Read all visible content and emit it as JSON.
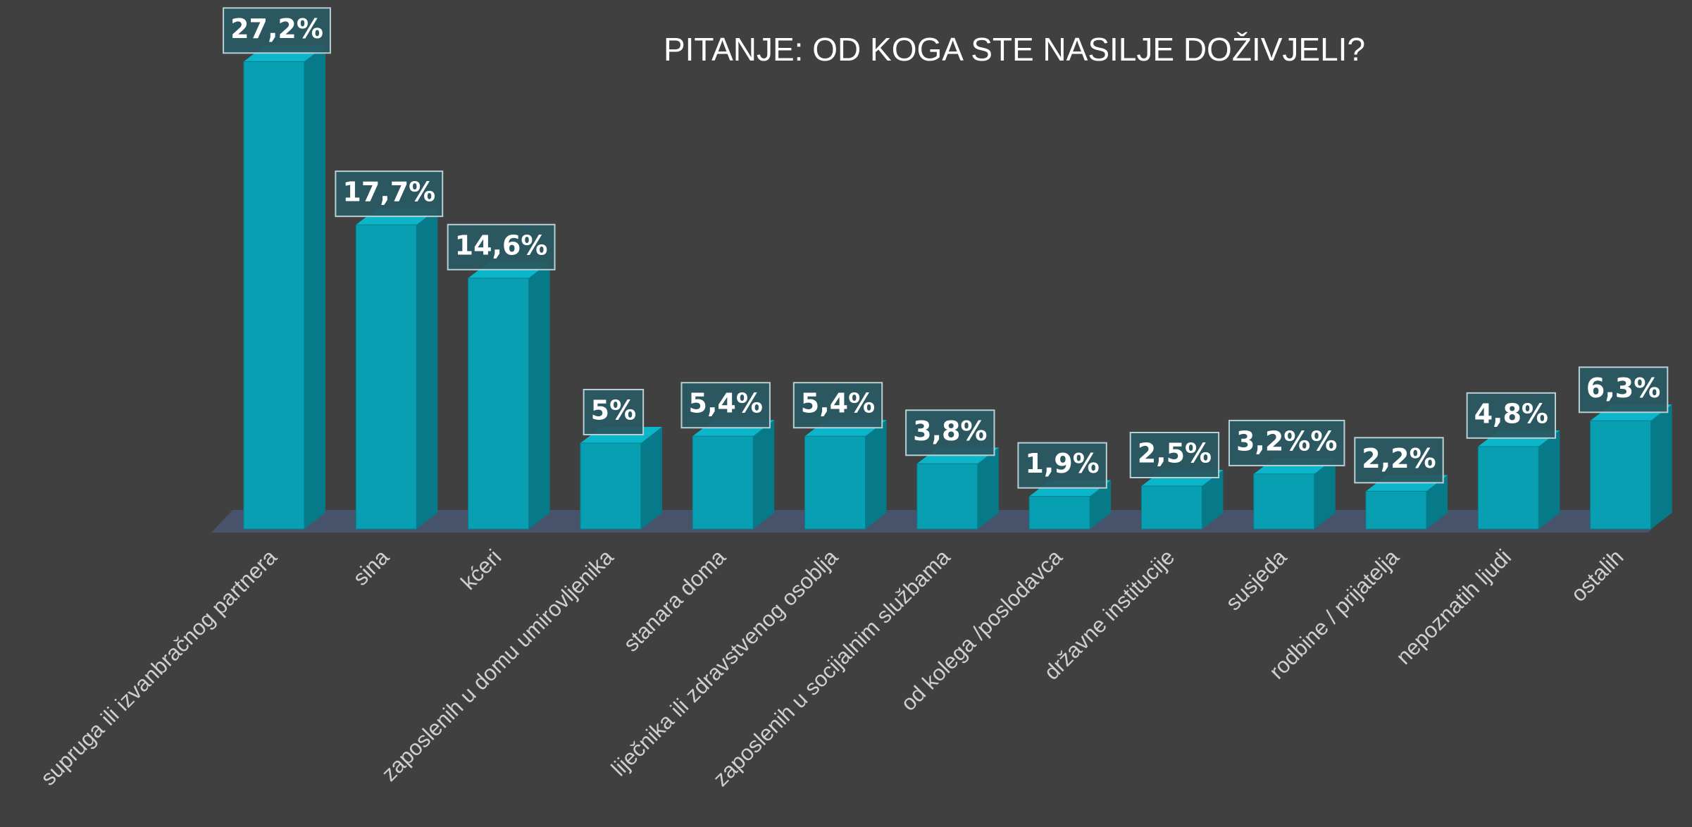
{
  "chart_data": {
    "type": "bar3d",
    "title": "PITANJE: OD KOGA STE NASILJE DOŽIVJELI?",
    "categories": [
      "supruga ili izvanbračnog partnera",
      "sina",
      "kćeri",
      "zaposlenih u domu umirovljenika",
      "stanara doma",
      "liječnika ili zdravstvenog osoblja",
      "zaposlenih u socijalnim službama",
      "od kolega /poslodavca",
      "državne institucije",
      "susjeda",
      "rodbine / prijatelja",
      "nepoznatih ljudi",
      "ostalih"
    ],
    "values": [
      27.2,
      17.7,
      14.6,
      5,
      5.4,
      5.4,
      3.8,
      1.9,
      2.5,
      3.2,
      2.2,
      4.8,
      6.3
    ],
    "value_labels": [
      "27,2%",
      "17,7%",
      "14,6%",
      "5%",
      "5,4%",
      "5,4%",
      "3,8%",
      "1,9%",
      "2,5%",
      "3,2%%",
      "2,2%",
      "4,8%",
      "6,3%"
    ],
    "color": "#089fb2"
  }
}
